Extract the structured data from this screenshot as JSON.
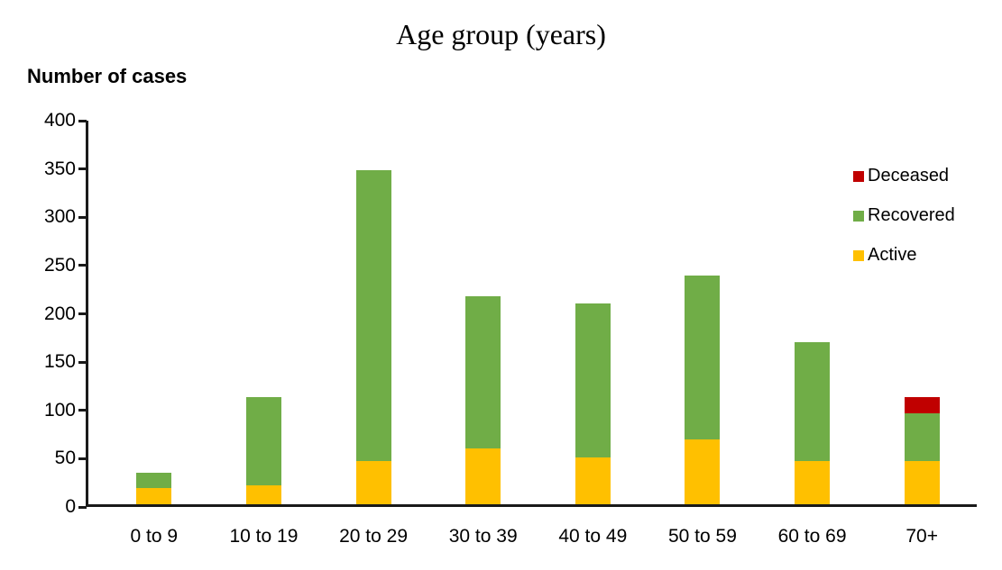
{
  "chart_data": {
    "type": "bar",
    "stacked": true,
    "title": "Age group (years)",
    "ylabel": "Number of cases",
    "xlabel": "",
    "categories": [
      "0 to 9",
      "10 to 19",
      "20 to 29",
      "30 to 39",
      "40 to 49",
      "50 to 59",
      "60 to 69",
      "70+"
    ],
    "series": [
      {
        "name": "Active",
        "color": "#FFC000",
        "values": [
          20,
          22,
          48,
          61,
          51,
          70,
          48,
          48
        ]
      },
      {
        "name": "Recovered",
        "color": "#70AD47",
        "values": [
          15,
          92,
          301,
          157,
          160,
          170,
          123,
          49
        ]
      },
      {
        "name": "Deceased",
        "color": "#C00000",
        "values": [
          0,
          0,
          0,
          0,
          0,
          0,
          0,
          17
        ]
      }
    ],
    "totals": [
      35,
      114,
      349,
      218,
      211,
      240,
      171,
      114
    ],
    "ylim": [
      0,
      400
    ],
    "yticks": [
      0,
      50,
      100,
      150,
      200,
      250,
      300,
      350,
      400
    ],
    "grid": false,
    "legend": {
      "position": "right",
      "entries": [
        "Deceased",
        "Recovered",
        "Active"
      ]
    },
    "axis_color": "#1a1a1a",
    "text_color": "#000000"
  }
}
